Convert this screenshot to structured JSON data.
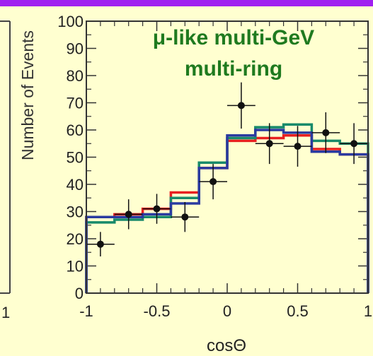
{
  "chart_data": {
    "type": "histogram",
    "title": "μ-like multi-GeV",
    "subtitle": "multi-ring",
    "xlabel": "cosΘ",
    "ylabel": "Number of Events",
    "xlim": [
      -1,
      1
    ],
    "ylim": [
      0,
      100
    ],
    "x_ticks": [
      "-1",
      "-0.5",
      "0",
      "0.5",
      "1"
    ],
    "y_ticks": [
      "0",
      "10",
      "20",
      "30",
      "40",
      "50",
      "60",
      "70",
      "80",
      "90",
      "100"
    ],
    "bin_edges": [
      -1,
      -0.8,
      -0.6,
      -0.4,
      -0.2,
      0,
      0.2,
      0.4,
      0.6,
      0.8,
      1
    ],
    "points": {
      "x": [
        -0.9,
        -0.7,
        -0.5,
        -0.3,
        -0.1,
        0.1,
        0.3,
        0.5,
        0.7,
        0.9
      ],
      "y": [
        18,
        29,
        31,
        28,
        41,
        69,
        55,
        54,
        59,
        55
      ],
      "err": [
        4.5,
        5.5,
        5.5,
        5.5,
        6.5,
        8.5,
        7.5,
        7.5,
        7.5,
        7.5
      ],
      "color": "#111111"
    },
    "series": [
      {
        "color": "#e82020",
        "values": [
          28,
          29,
          31,
          37,
          46,
          56,
          57,
          58,
          53,
          51
        ]
      },
      {
        "color": "#188a6a",
        "values": [
          26,
          27,
          28,
          35,
          48,
          57,
          61,
          62,
          56,
          55
        ]
      },
      {
        "color": "#2a3aa0",
        "values": [
          28,
          28,
          29,
          33,
          46,
          58,
          60,
          59,
          52,
          51
        ]
      }
    ],
    "left_panel_fragment": {
      "tick_label": "1"
    }
  }
}
